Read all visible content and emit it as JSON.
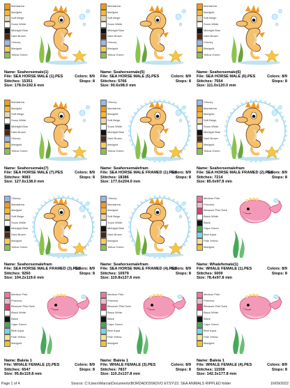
{
  "designs": [
    {
      "name": "Seahorsemale(1)",
      "file": "SEA HORSE MALE (1).PES",
      "colors": "8/9",
      "stitches": "15351",
      "stops": "8",
      "size": "178.0x192.6 mm",
      "art": "seahorse",
      "framed": false,
      "palette": [
        {
          "name": "Mandarina",
          "color": "#f19a1e"
        },
        {
          "name": "Marigold",
          "color": "#f7b733"
        },
        {
          "name": "Soft Beige",
          "color": "#e9d4b4"
        },
        {
          "name": "Snow White",
          "color": "#ffffff"
        },
        {
          "name": "Midnight Blue",
          "color": "#111111"
        },
        {
          "name": "Dark Brown",
          "color": "#4e2a14"
        },
        {
          "name": "Chicory",
          "color": "#9ab7e0"
        },
        {
          "name": "Marigold",
          "color": "#f4d046"
        },
        {
          "name": "Yellow Green",
          "color": "#8bc34a"
        }
      ]
    },
    {
      "name": "Seahorsemale(5)",
      "file": "SEA HORSE MALE (5).PES",
      "colors": "8/9",
      "stitches": "5766",
      "stops": "8",
      "size": "90.6x98.0 mm",
      "art": "seahorse",
      "framed": false,
      "palette": [
        {
          "name": "Mandarina",
          "color": "#f19a1e"
        },
        {
          "name": "Marigold",
          "color": "#f7b733"
        },
        {
          "name": "Soft Beige",
          "color": "#e9d4b4"
        },
        {
          "name": "Snow White",
          "color": "#ffffff"
        },
        {
          "name": "Midnight Blue",
          "color": "#111111"
        },
        {
          "name": "Dark Brown",
          "color": "#4e2a14"
        },
        {
          "name": "Chicory",
          "color": "#9ab7e0"
        },
        {
          "name": "Marigold",
          "color": "#f4d046"
        },
        {
          "name": "Yellow Green",
          "color": "#8bc34a"
        }
      ]
    },
    {
      "name": "Seahorsemale(6)",
      "file": "SEA HORSE MALE (6).PES",
      "colors": "8/9",
      "stitches": "7554",
      "stops": "8",
      "size": "111.0x120.0 mm",
      "art": "seahorse",
      "framed": false,
      "palette": [
        {
          "name": "Mandarina",
          "color": "#f19a1e"
        },
        {
          "name": "Marigold",
          "color": "#f7b733"
        },
        {
          "name": "Soft Beige",
          "color": "#e9d4b4"
        },
        {
          "name": "Snow White",
          "color": "#ffffff"
        },
        {
          "name": "Midnight Blue",
          "color": "#111111"
        },
        {
          "name": "Dark Brown",
          "color": "#4e2a14"
        },
        {
          "name": "Chicory",
          "color": "#9ab7e0"
        },
        {
          "name": "Marigold",
          "color": "#f4d046"
        },
        {
          "name": "Yellow Green",
          "color": "#8bc34a"
        }
      ]
    },
    {
      "name": "Seahorsemale(7)",
      "file": "SEA HORSE MALE (7).PES",
      "colors": "8/9",
      "stitches": "9083",
      "stops": "8",
      "size": "127.6x138.0 mm",
      "art": "seahorse",
      "framed": false,
      "palette": [
        {
          "name": "Mandarina",
          "color": "#f19a1e"
        },
        {
          "name": "Marigold",
          "color": "#f7b733"
        },
        {
          "name": "Soft Beige",
          "color": "#e9d4b4"
        },
        {
          "name": "Snow White",
          "color": "#ffffff"
        },
        {
          "name": "Midnight Blue",
          "color": "#111111"
        },
        {
          "name": "Dark Brown",
          "color": "#4e2a14"
        },
        {
          "name": "Chicory",
          "color": "#9ab7e0"
        },
        {
          "name": "Marigold",
          "color": "#f4d046"
        },
        {
          "name": "Yellow Green",
          "color": "#8bc34a"
        }
      ]
    },
    {
      "name": "Seahorsemalefram",
      "file": "SEA HORSE MALE FRAMED (1).PES",
      "colors": "8/9",
      "stitches": "18386",
      "stops": "8",
      "size": "177.6x204.0 mm",
      "art": "seahorse",
      "framed": true,
      "palette": [
        {
          "name": "Chicory",
          "color": "#9ab7e0"
        },
        {
          "name": "Mandarina",
          "color": "#f19a1e"
        },
        {
          "name": "Marigold",
          "color": "#f7b733"
        },
        {
          "name": "Soft Beige",
          "color": "#e9d4b4"
        },
        {
          "name": "Snow White",
          "color": "#ffffff"
        },
        {
          "name": "Midnight Blue",
          "color": "#111111"
        },
        {
          "name": "Dark Brown",
          "color": "#4e2a14"
        },
        {
          "name": "Marigold",
          "color": "#f4d046"
        },
        {
          "name": "Yellow Green",
          "color": "#8bc34a"
        }
      ]
    },
    {
      "name": "Seahorsemalefram",
      "file": "SEA HORSE MALE FRAMED (2).PES",
      "colors": "8/9",
      "stitches": "7214",
      "stops": "8",
      "size": "85.0x97.8 mm",
      "art": "seahorse",
      "framed": true,
      "palette": [
        {
          "name": "Chicory",
          "color": "#9ab7e0"
        },
        {
          "name": "Mandarina",
          "color": "#f19a1e"
        },
        {
          "name": "Marigold",
          "color": "#f7b733"
        },
        {
          "name": "Soft Beige",
          "color": "#e9d4b4"
        },
        {
          "name": "Snow White",
          "color": "#ffffff"
        },
        {
          "name": "Midnight Blue",
          "color": "#111111"
        },
        {
          "name": "Dark Brown",
          "color": "#4e2a14"
        },
        {
          "name": "Marigold",
          "color": "#f4d046"
        },
        {
          "name": "Yellow Green",
          "color": "#8bc34a"
        }
      ]
    },
    {
      "name": "Seahorsemalefram",
      "file": "SEA HORSE MALE FRAMED (3).PES",
      "colors": "8/9",
      "stitches": "9260",
      "stops": "8",
      "size": "104.2x119.6 mm",
      "art": "seahorse",
      "framed": true,
      "palette": [
        {
          "name": "Chicory",
          "color": "#9ab7e0"
        },
        {
          "name": "Mandarina",
          "color": "#f19a1e"
        },
        {
          "name": "Marigold",
          "color": "#f7b733"
        },
        {
          "name": "Soft Beige",
          "color": "#e9d4b4"
        },
        {
          "name": "Snow White",
          "color": "#ffffff"
        },
        {
          "name": "Midnight Blue",
          "color": "#111111"
        },
        {
          "name": "Dark Brown",
          "color": "#4e2a14"
        },
        {
          "name": "Marigold",
          "color": "#f4d046"
        },
        {
          "name": "Yellow Green",
          "color": "#8bc34a"
        }
      ]
    },
    {
      "name": "Seahorsemalefram",
      "file": "SEA HORSE MALE FRAMED (4).PES",
      "colors": "8/9",
      "stitches": "10979",
      "stops": "8",
      "size": "119.8x137.6 mm",
      "art": "seahorse",
      "framed": true,
      "palette": [
        {
          "name": "Chicory",
          "color": "#9ab7e0"
        },
        {
          "name": "Mandarina",
          "color": "#f19a1e"
        },
        {
          "name": "Marigold",
          "color": "#f7b733"
        },
        {
          "name": "Soft Beige",
          "color": "#e9d4b4"
        },
        {
          "name": "Snow White",
          "color": "#ffffff"
        },
        {
          "name": "Midnight Blue",
          "color": "#111111"
        },
        {
          "name": "Dark Brown",
          "color": "#4e2a14"
        },
        {
          "name": "Marigold",
          "color": "#f4d046"
        },
        {
          "name": "Yellow Green",
          "color": "#8bc34a"
        }
      ]
    },
    {
      "name": "Whalefemale(1)",
      "file": "WHALE FEMALE (1).PES",
      "colors": "8/9",
      "stitches": "5009",
      "stops": "8",
      "size": "78.4x97.8 mm",
      "art": "whale",
      "framed": false,
      "palette": [
        {
          "name": "Medium Pink",
          "color": "#e9799b"
        },
        {
          "name": "Princess",
          "color": "#f7b6cb"
        },
        {
          "name": "Blossom Pink Dark",
          "color": "#d9436f"
        },
        {
          "name": "Black White",
          "color": "#ffffff"
        },
        {
          "name": "Black",
          "color": "#111111"
        },
        {
          "name": "Cape Green",
          "color": "#46a85a"
        },
        {
          "name": "Blue Aqua",
          "color": "#7fd0e8"
        },
        {
          "name": "Pale Yellow",
          "color": "#f6e48a"
        },
        {
          "name": "Marigold",
          "color": "#f4c12e"
        }
      ]
    },
    {
      "name": "Baleia 1",
      "file": "WHALE FEMALE (2).PES",
      "colors": "8/9",
      "stitches": "6547",
      "stops": "8",
      "size": "95.8x119.8 mm",
      "art": "whale",
      "framed": false,
      "palette": [
        {
          "name": "Medium Pink",
          "color": "#e9799b"
        },
        {
          "name": "Princess",
          "color": "#f7b6cb"
        },
        {
          "name": "Blossom Pink Dark",
          "color": "#d9436f"
        },
        {
          "name": "Black White",
          "color": "#ffffff"
        },
        {
          "name": "Black",
          "color": "#111111"
        },
        {
          "name": "Cape Green",
          "color": "#46a85a"
        },
        {
          "name": "Blue Aqua",
          "color": "#7fd0e8"
        },
        {
          "name": "Pale Yellow",
          "color": "#f6e48a"
        },
        {
          "name": "Marigold",
          "color": "#f4c12e"
        }
      ]
    },
    {
      "name": "Baleia 1",
      "file": "WHALE FEMALE (3).PES",
      "colors": "8/9",
      "stitches": "7837",
      "stops": "8",
      "size": "110.2x137.8 mm",
      "art": "whale",
      "framed": false,
      "palette": [
        {
          "name": "Medium Pink",
          "color": "#e9799b"
        },
        {
          "name": "Princess",
          "color": "#f7b6cb"
        },
        {
          "name": "Blossom Pink Dark",
          "color": "#d9436f"
        },
        {
          "name": "Black White",
          "color": "#ffffff"
        },
        {
          "name": "Black",
          "color": "#111111"
        },
        {
          "name": "Cape Green",
          "color": "#46a85a"
        },
        {
          "name": "Blue Aqua",
          "color": "#7fd0e8"
        },
        {
          "name": "Pale Yellow",
          "color": "#f6e48a"
        },
        {
          "name": "Marigold",
          "color": "#f4c12e"
        }
      ]
    },
    {
      "name": "Baleia 1",
      "file": "WHALE FEMALE (4).PES",
      "colors": "8/9",
      "stitches": "11558",
      "stops": "8",
      "size": "142.3x177.8 mm",
      "art": "whale",
      "framed": false,
      "palette": [
        {
          "name": "Medium Pink",
          "color": "#e9799b"
        },
        {
          "name": "Princess",
          "color": "#f7b6cb"
        },
        {
          "name": "Blossom Pink Dark",
          "color": "#d9436f"
        },
        {
          "name": "Black White",
          "color": "#ffffff"
        },
        {
          "name": "Black",
          "color": "#111111"
        },
        {
          "name": "Cape Green",
          "color": "#46a85a"
        },
        {
          "name": "Blue Aqua",
          "color": "#7fd0e8"
        },
        {
          "name": "Pale Yellow",
          "color": "#f6e48a"
        },
        {
          "name": "Marigold",
          "color": "#f4c12e"
        }
      ]
    }
  ],
  "labels": {
    "name": "Name:",
    "file": "File:",
    "stitches": "Stitches:",
    "size": "Size:",
    "colors": "Colors:",
    "stops": "Stops:"
  },
  "footer": {
    "page": "Page 1 of 4",
    "source": "Source: C:\\Users\\Marcia\\Documents\\BORDADOS\\NOVO ETSY\\22. SEA ANIMALS RIPPLED folder",
    "date": "16/09/2022"
  }
}
